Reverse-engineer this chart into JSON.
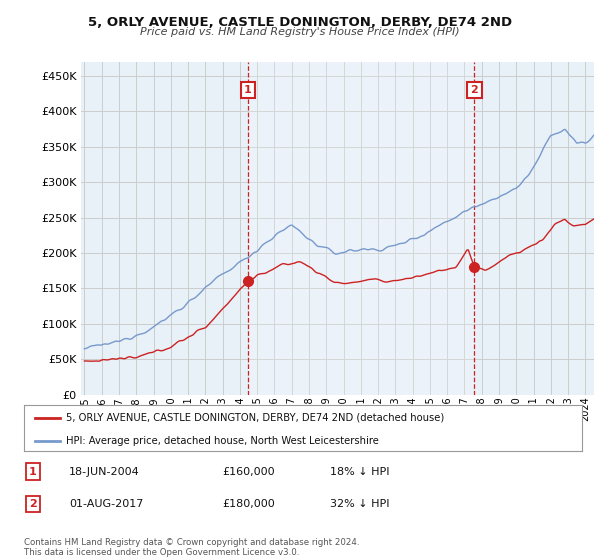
{
  "title": "5, ORLY AVENUE, CASTLE DONINGTON, DERBY, DE74 2ND",
  "subtitle": "Price paid vs. HM Land Registry's House Price Index (HPI)",
  "background_color": "#ffffff",
  "plot_bg_color": "#e8f0f8",
  "grid_color": "#cccccc",
  "hpi_color": "#7799cc",
  "price_color": "#cc2222",
  "legend_entry1": "5, ORLY AVENUE, CASTLE DONINGTON, DERBY, DE74 2ND (detached house)",
  "legend_entry2": "HPI: Average price, detached house, North West Leicestershire",
  "sale1_date": "18-JUN-2004",
  "sale1_price": "£160,000",
  "sale1_rel": "18% ↓ HPI",
  "sale2_date": "01-AUG-2017",
  "sale2_price": "£180,000",
  "sale2_rel": "32% ↓ HPI",
  "footnote": "Contains HM Land Registry data © Crown copyright and database right 2024.\nThis data is licensed under the Open Government Licence v3.0.",
  "ylim_min": 0,
  "ylim_max": 470000,
  "yticks": [
    0,
    50000,
    100000,
    150000,
    200000,
    250000,
    300000,
    350000,
    400000,
    450000
  ],
  "x_start_year": 1995,
  "x_end_year": 2025,
  "sale1_year": 2004.46,
  "sale2_year": 2017.58,
  "sale1_price_val": 160000,
  "sale2_price_val": 180000
}
